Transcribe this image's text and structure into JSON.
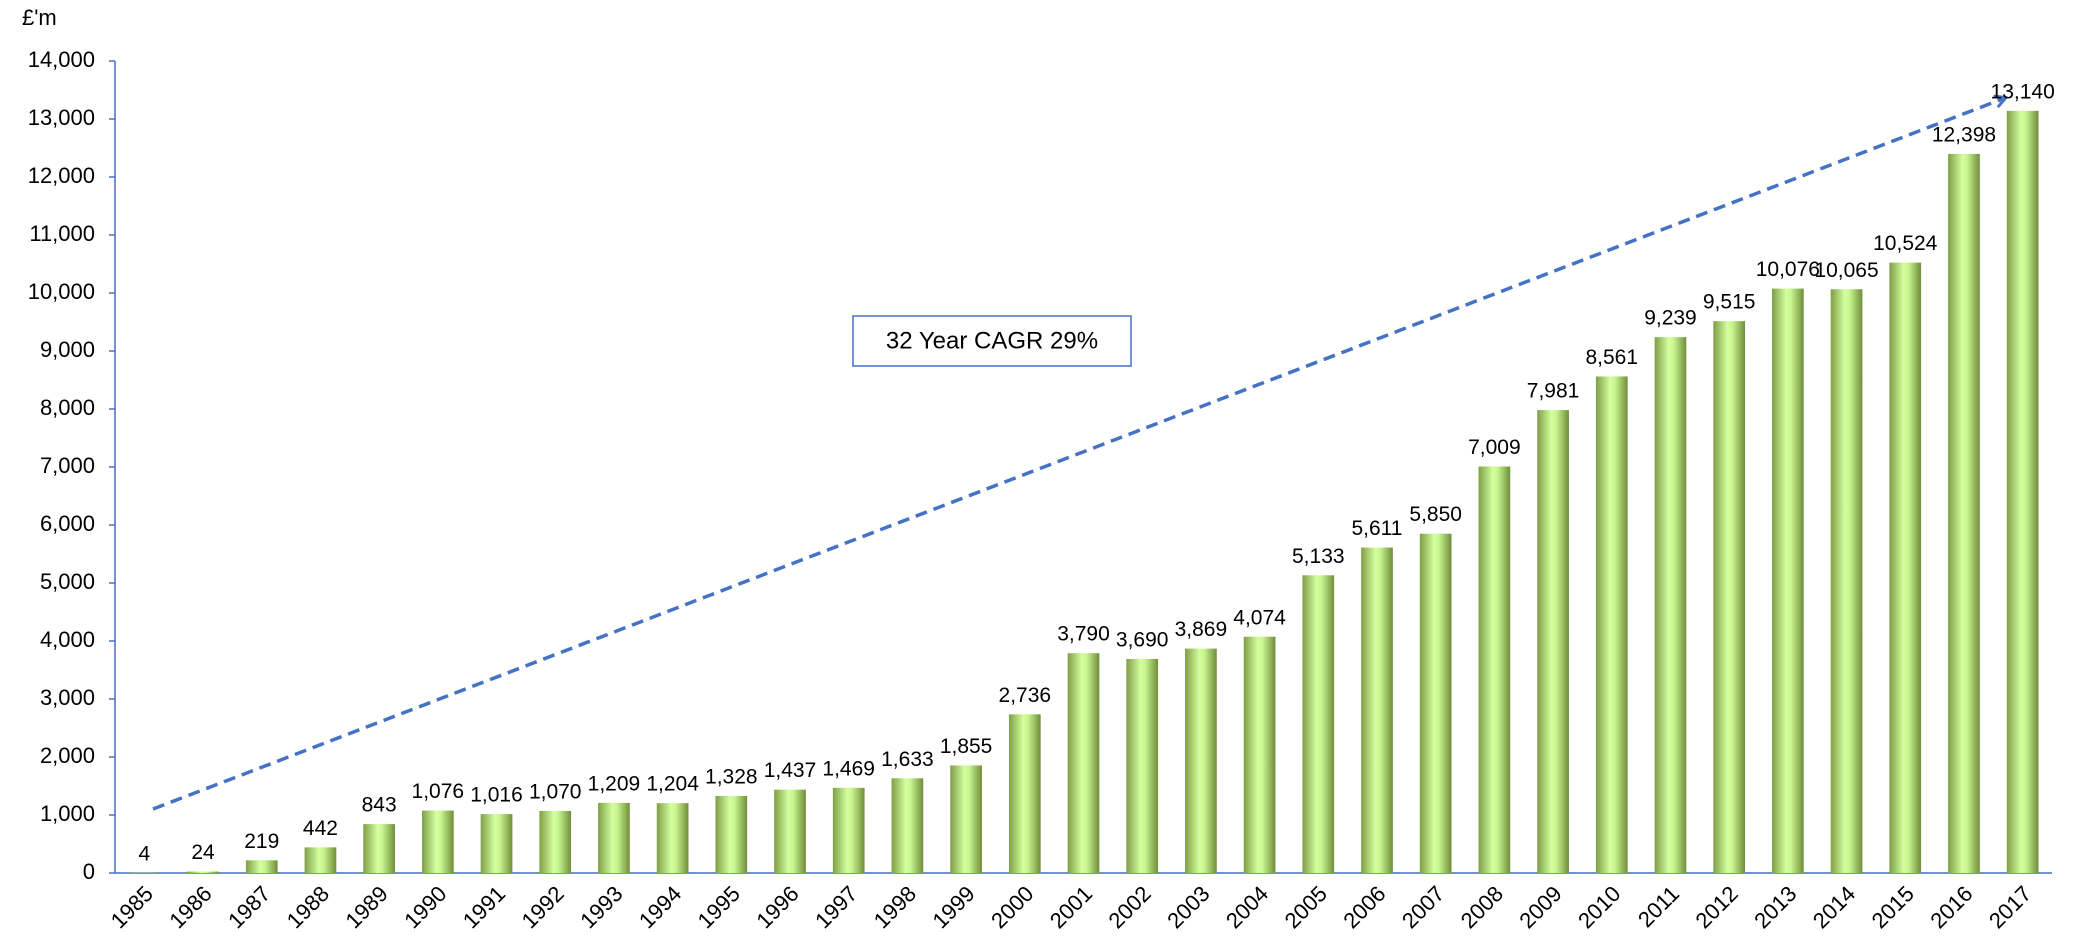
{
  "chart_data": {
    "type": "bar",
    "y_label": "£'m",
    "annotation": "32 Year CAGR 29%",
    "categories": [
      "1985",
      "1986",
      "1987",
      "1988",
      "1989",
      "1990",
      "1991",
      "1992",
      "1993",
      "1994",
      "1995",
      "1996",
      "1997",
      "1998",
      "1999",
      "2000",
      "2001",
      "2002",
      "2003",
      "2004",
      "2005",
      "2006",
      "2007",
      "2008",
      "2009",
      "2010",
      "2011",
      "2012",
      "2013",
      "2014",
      "2015",
      "2016",
      "2017"
    ],
    "values": [
      4,
      24,
      219,
      442,
      843,
      1076,
      1016,
      1070,
      1209,
      1204,
      1328,
      1437,
      1469,
      1633,
      1855,
      2736,
      3790,
      3690,
      3869,
      4074,
      5133,
      5611,
      5850,
      7009,
      7981,
      8561,
      9239,
      9515,
      10076,
      10065,
      10524,
      12398,
      13140
    ],
    "value_labels": [
      "4",
      "24",
      "219",
      "442",
      "843",
      "1,076",
      "1,016",
      "1,070",
      "1,209",
      "1,204",
      "1,328",
      "1,437",
      "1,469",
      "1,633",
      "1,855",
      "2,736",
      "3,790",
      "3,690",
      "3,869",
      "4,074",
      "5,133",
      "5,611",
      "5,850",
      "7,009",
      "7,981",
      "8,561",
      "9,239",
      "9,515",
      "10,076",
      "10,065",
      "10,524",
      "12,398",
      "13,140"
    ],
    "color": "#b5e27a",
    "ylim": [
      0,
      14000
    ],
    "yticks": [
      0,
      {
        "value": 1000,
        "label": "1,000"
      },
      {
        "value": 2000,
        "label": "2,000"
      },
      {
        "value": 3000,
        "label": "3,000"
      },
      {
        "value": 4000,
        "label": "4,000"
      },
      {
        "value": 5000,
        "label": "5,000"
      },
      {
        "value": 6000,
        "label": "6,000"
      },
      {
        "value": 7000,
        "label": "7,000"
      },
      {
        "value": 8000,
        "label": "8,000"
      },
      {
        "value": 9000,
        "label": "9,000"
      },
      {
        "value": 10000,
        "label": "10,000"
      },
      {
        "value": 11000,
        "label": "11,000"
      },
      {
        "value": 12000,
        "label": "12,000"
      },
      {
        "value": 13000,
        "label": "13,000"
      },
      {
        "value": 14000,
        "label": "14,000"
      }
    ],
    "grid": false
  }
}
